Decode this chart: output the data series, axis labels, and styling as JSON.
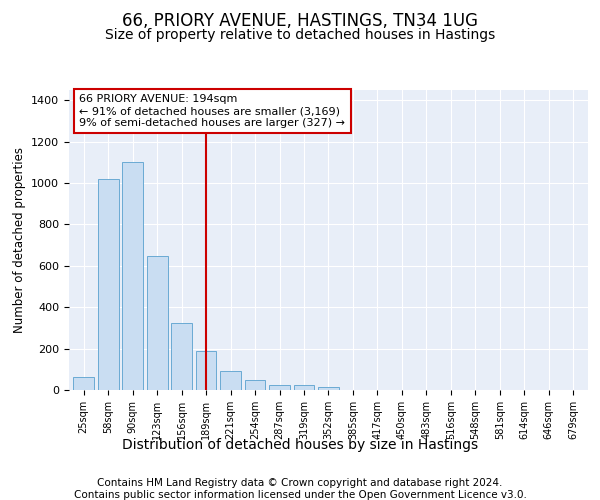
{
  "title1": "66, PRIORY AVENUE, HASTINGS, TN34 1UG",
  "title2": "Size of property relative to detached houses in Hastings",
  "xlabel": "Distribution of detached houses by size in Hastings",
  "ylabel": "Number of detached properties",
  "footnote1": "Contains HM Land Registry data © Crown copyright and database right 2024.",
  "footnote2": "Contains public sector information licensed under the Open Government Licence v3.0.",
  "categories": [
    "25sqm",
    "58sqm",
    "90sqm",
    "123sqm",
    "156sqm",
    "189sqm",
    "221sqm",
    "254sqm",
    "287sqm",
    "319sqm",
    "352sqm",
    "385sqm",
    "417sqm",
    "450sqm",
    "483sqm",
    "516sqm",
    "548sqm",
    "581sqm",
    "614sqm",
    "646sqm",
    "679sqm"
  ],
  "values": [
    65,
    1020,
    1100,
    650,
    325,
    190,
    90,
    50,
    25,
    22,
    15,
    0,
    0,
    0,
    0,
    0,
    0,
    0,
    0,
    0,
    0
  ],
  "bar_color": "#c9ddf2",
  "bar_edge_color": "#6aaad4",
  "vline_x": 5,
  "vline_color": "#cc0000",
  "annotation_text": "66 PRIORY AVENUE: 194sqm\n← 91% of detached houses are smaller (3,169)\n9% of semi-detached houses are larger (327) →",
  "annotation_box_color": "#cc0000",
  "ylim": [
    0,
    1450
  ],
  "yticks": [
    0,
    200,
    400,
    600,
    800,
    1000,
    1200,
    1400
  ],
  "bg_color": "#ffffff",
  "plot_bg_color": "#e8eef8",
  "grid_color": "#ffffff",
  "title1_fontsize": 12,
  "title2_fontsize": 10,
  "xlabel_fontsize": 10,
  "ylabel_fontsize": 8.5,
  "footnote_fontsize": 7.5
}
